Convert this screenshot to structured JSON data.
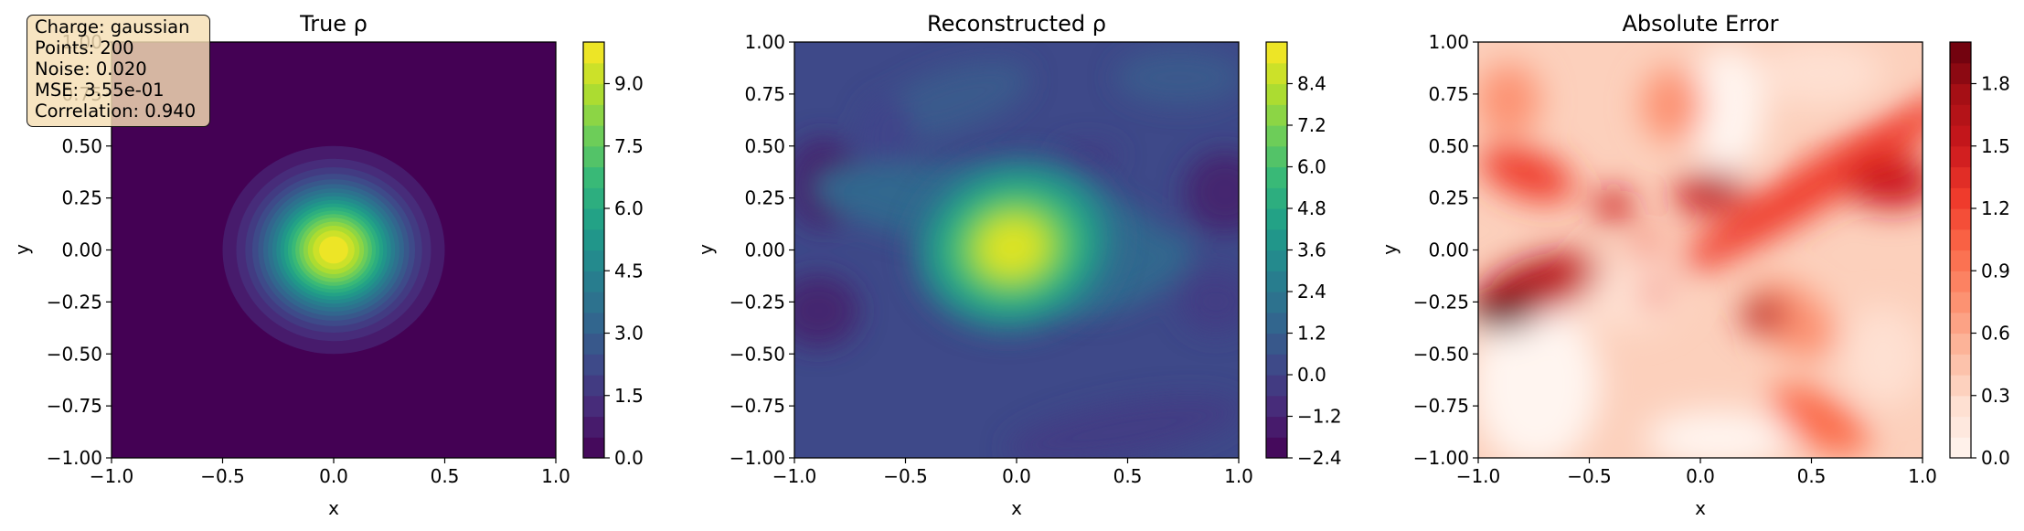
{
  "colors": {
    "viridis": [
      "#440154",
      "#482878",
      "#3e4989",
      "#31688e",
      "#26828e",
      "#1f9e89",
      "#35b779",
      "#6ece58",
      "#b5de2b",
      "#fde725"
    ],
    "reds": [
      "#fff5f0",
      "#fee0d2",
      "#fcbba1",
      "#fc9272",
      "#fb6a4a",
      "#ef3b2c",
      "#cb181d",
      "#a50f15",
      "#67000d"
    ]
  },
  "info_box": {
    "charge": "Charge: gaussian",
    "points": "Points: 200",
    "noise": "Noise: 0.020",
    "mse": "MSE: 3.55e-01",
    "correlation": "Correlation: 0.940"
  },
  "chart_data": [
    {
      "type": "heatmap",
      "title": "True ρ",
      "xlabel": "x",
      "ylabel": "y",
      "xlim": [
        -1.0,
        1.0
      ],
      "ylim": [
        -1.0,
        1.0
      ],
      "x_ticks": [
        "−1.0",
        "−0.5",
        "0.0",
        "0.5",
        "1.0"
      ],
      "y_ticks": [
        "−1.00",
        "−0.75",
        "−0.50",
        "−0.25",
        "0.00",
        "0.25",
        "0.50",
        "0.75",
        "1.00"
      ],
      "colormap": "viridis",
      "colorbar_range": [
        0,
        10
      ],
      "colorbar_ticks": [
        "0.0",
        "1.5",
        "3.0",
        "4.5",
        "6.0",
        "7.5",
        "9.0"
      ],
      "colorbar_tick_values": [
        0,
        1.5,
        3.0,
        4.5,
        6.0,
        7.5,
        9.0
      ],
      "peak_center": [
        0.0,
        0.0
      ],
      "peak_value": 10.0,
      "peak_radius": 0.5
    },
    {
      "type": "heatmap",
      "title": "Reconstructed ρ",
      "xlabel": "x",
      "ylabel": "y",
      "xlim": [
        -1.0,
        1.0
      ],
      "ylim": [
        -1.0,
        1.0
      ],
      "x_ticks": [
        "−1.0",
        "−0.5",
        "0.0",
        "0.5",
        "1.0"
      ],
      "y_ticks": [
        "−1.00",
        "−0.75",
        "−0.50",
        "−0.25",
        "0.00",
        "0.25",
        "0.50",
        "0.75",
        "1.00"
      ],
      "colormap": "viridis",
      "colorbar_range": [
        -2.4,
        9.6
      ],
      "colorbar_ticks": [
        "−2.4",
        "−1.2",
        "0.0",
        "1.2",
        "2.4",
        "3.6",
        "4.8",
        "6.0",
        "7.2",
        "8.4"
      ],
      "colorbar_tick_values": [
        -2.4,
        -1.2,
        0.0,
        1.2,
        2.4,
        3.6,
        4.8,
        6.0,
        7.2,
        8.4
      ],
      "peak_center": [
        -0.02,
        0.01
      ],
      "peak_value": 9.0
    },
    {
      "type": "heatmap",
      "title": "Absolute Error",
      "xlabel": "x",
      "ylabel": "y",
      "xlim": [
        -1.0,
        1.0
      ],
      "ylim": [
        -1.0,
        1.0
      ],
      "x_ticks": [
        "−1.0",
        "−0.5",
        "0.0",
        "0.5",
        "1.0"
      ],
      "y_ticks": [
        "−1.00",
        "−0.75",
        "−0.50",
        "−0.25",
        "0.00",
        "0.25",
        "0.50",
        "0.75",
        "1.00"
      ],
      "colormap": "Reds",
      "colorbar_range": [
        0,
        2.0
      ],
      "colorbar_ticks": [
        "0.0",
        "0.3",
        "0.6",
        "0.9",
        "1.2",
        "1.5",
        "1.8"
      ],
      "colorbar_tick_values": [
        0,
        0.3,
        0.6,
        0.9,
        1.2,
        1.5,
        1.8
      ]
    }
  ]
}
